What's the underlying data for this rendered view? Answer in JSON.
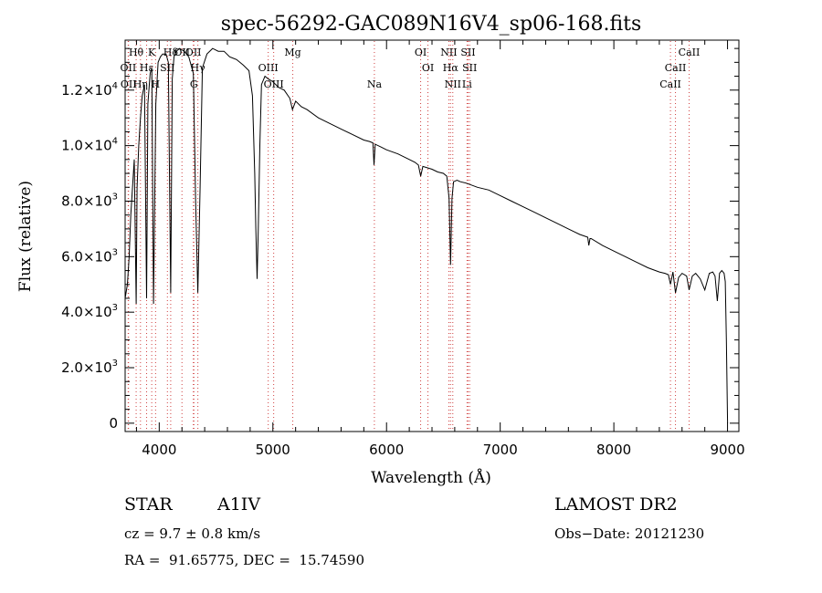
{
  "chart_data": {
    "type": "line",
    "title": "spec-56292-GAC089N16V4_sp06-168.fits",
    "xlabel": "Wavelength (Å)",
    "ylabel": "Flux (relative)",
    "xlim": [
      3700,
      9100
    ],
    "ylim": [
      -300,
      13800
    ],
    "x_ticks": [
      {
        "value": 4000,
        "label": "4000"
      },
      {
        "value": 5000,
        "label": "5000"
      },
      {
        "value": 6000,
        "label": "6000"
      },
      {
        "value": 7000,
        "label": "7000"
      },
      {
        "value": 8000,
        "label": "8000"
      },
      {
        "value": 9000,
        "label": "9000"
      }
    ],
    "y_ticks": [
      {
        "value": 0,
        "label": "0",
        "exp": ""
      },
      {
        "value": 2000,
        "label": "2.0×10",
        "exp": "3"
      },
      {
        "value": 4000,
        "label": "4.0×10",
        "exp": "3"
      },
      {
        "value": 6000,
        "label": "6.0×10",
        "exp": "3"
      },
      {
        "value": 8000,
        "label": "8.0×10",
        "exp": "3"
      },
      {
        "value": 10000,
        "label": "1.0×10",
        "exp": "4"
      },
      {
        "value": 12000,
        "label": "1.2×10",
        "exp": "4"
      }
    ],
    "series": [
      {
        "name": "spectrum",
        "x": [
          3700,
          3720,
          3735,
          3750,
          3765,
          3780,
          3797,
          3805,
          3820,
          3835,
          3850,
          3870,
          3889,
          3900,
          3920,
          3935,
          3950,
          3970,
          3990,
          4010,
          4030,
          4060,
          4080,
          4101,
          4115,
          4130,
          4150,
          4180,
          4220,
          4260,
          4300,
          4320,
          4340,
          4360,
          4380,
          4420,
          4470,
          4520,
          4570,
          4620,
          4680,
          4740,
          4790,
          4820,
          4840,
          4850,
          4861,
          4872,
          4885,
          4900,
          4930,
          4960,
          5000,
          5050,
          5100,
          5150,
          5172,
          5200,
          5250,
          5300,
          5400,
          5500,
          5600,
          5700,
          5800,
          5850,
          5880,
          5890,
          5900,
          5950,
          6000,
          6100,
          6200,
          6250,
          6280,
          6300,
          6320,
          6400,
          6450,
          6500,
          6530,
          6550,
          6563,
          6576,
          6590,
          6620,
          6650,
          6700,
          6800,
          6900,
          7000,
          7100,
          7200,
          7300,
          7400,
          7500,
          7600,
          7700,
          7770,
          7780,
          7790,
          7800,
          7900,
          8000,
          8100,
          8200,
          8300,
          8400,
          8450,
          8480,
          8498,
          8520,
          8542,
          8570,
          8600,
          8640,
          8662,
          8690,
          8720,
          8760,
          8800,
          8840,
          8870,
          8890,
          8910,
          8930,
          8950,
          8970,
          8980,
          8990,
          9000
        ],
        "y": [
          4500,
          5000,
          6000,
          7500,
          8500,
          9500,
          4300,
          8500,
          10000,
          11000,
          11800,
          12200,
          4500,
          11500,
          12600,
          12800,
          4300,
          11500,
          13000,
          13200,
          13300,
          13300,
          13000,
          4700,
          12400,
          13200,
          13400,
          13500,
          13400,
          13200,
          12600,
          8000,
          4700,
          8500,
          12800,
          13300,
          13500,
          13400,
          13400,
          13200,
          13100,
          12900,
          12700,
          11800,
          9000,
          7000,
          5200,
          7000,
          10000,
          12200,
          12500,
          12400,
          12300,
          12100,
          12000,
          11700,
          11300,
          11600,
          11400,
          11300,
          11000,
          10800,
          10600,
          10400,
          10200,
          10150,
          10100,
          9300,
          10050,
          9950,
          9850,
          9700,
          9500,
          9400,
          9300,
          8900,
          9250,
          9150,
          9050,
          9000,
          8900,
          8100,
          5700,
          8100,
          8700,
          8750,
          8700,
          8650,
          8500,
          8400,
          8200,
          8000,
          7800,
          7600,
          7400,
          7200,
          7000,
          6800,
          6700,
          6400,
          6650,
          6650,
          6400,
          6200,
          6000,
          5800,
          5600,
          5450,
          5400,
          5350,
          5000,
          5450,
          4700,
          5250,
          5400,
          5300,
          4800,
          5300,
          5400,
          5200,
          4800,
          5400,
          5450,
          5300,
          4400,
          5400,
          5500,
          5400,
          5100,
          3000,
          0
        ]
      }
    ],
    "lines": [
      {
        "name": "Hθ",
        "wl": 3797,
        "row": 0
      },
      {
        "name": "K",
        "wl": 3934,
        "row": 0
      },
      {
        "name": "Hδ",
        "wl": 4101,
        "row": 0
      },
      {
        "name": "OII",
        "wl": 4200,
        "row": 0
      },
      {
        "name": "OII",
        "wl": 4300,
        "row": 0
      },
      {
        "name": "Mg",
        "wl": 5175,
        "row": 0
      },
      {
        "name": "OI",
        "wl": 6300,
        "row": 0
      },
      {
        "name": "NII",
        "wl": 6548,
        "row": 0
      },
      {
        "name": "SII",
        "wl": 6717,
        "row": 0
      },
      {
        "name": "CaII",
        "wl": 8662,
        "row": 0
      },
      {
        "name": "OII",
        "wl": 3727,
        "row": 1
      },
      {
        "name": "Hε",
        "wl": 3889,
        "row": 1
      },
      {
        "name": "SII",
        "wl": 4072,
        "row": 1
      },
      {
        "name": "Hγ",
        "wl": 4340,
        "row": 1
      },
      {
        "name": "OIII",
        "wl": 4959,
        "row": 1
      },
      {
        "name": "OI",
        "wl": 6364,
        "row": 1
      },
      {
        "name": "Hα",
        "wl": 6563,
        "row": 1
      },
      {
        "name": "SII",
        "wl": 6731,
        "row": 1
      },
      {
        "name": "CaII",
        "wl": 8542,
        "row": 1
      },
      {
        "name": "OII",
        "wl": 3730,
        "row": 2
      },
      {
        "name": "Hη",
        "wl": 3835,
        "row": 2
      },
      {
        "name": "H",
        "wl": 3968,
        "row": 2
      },
      {
        "name": "G",
        "wl": 4305,
        "row": 2
      },
      {
        "name": "OIII",
        "wl": 5007,
        "row": 2
      },
      {
        "name": "Na",
        "wl": 5893,
        "row": 2
      },
      {
        "name": "NII",
        "wl": 6583,
        "row": 2
      },
      {
        "name": "Li",
        "wl": 6708,
        "row": 2
      },
      {
        "name": "CaII",
        "wl": 8498,
        "row": 2
      }
    ]
  },
  "footer": {
    "object_type": "STAR",
    "subclass": "A1IV",
    "survey": "LAMOST DR2",
    "cz": "cz = 9.7 ± 0.8 km/s",
    "obs_date": "Obs−Date: 20121230",
    "coords": "RA =  91.65775, DEC =  15.74590"
  }
}
